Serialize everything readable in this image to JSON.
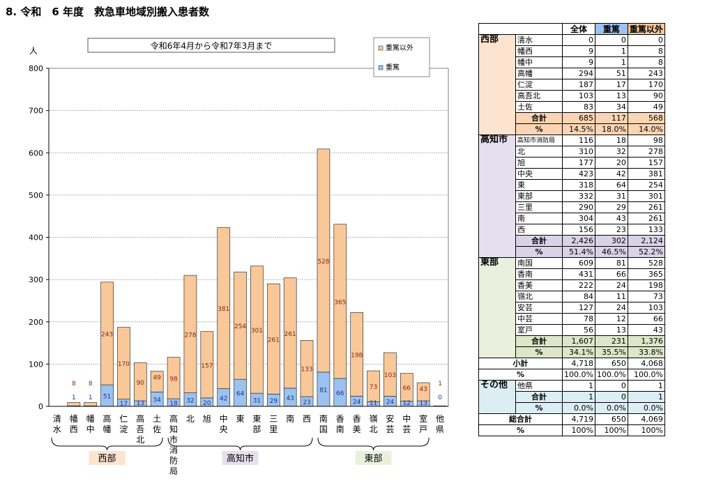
{
  "title": "8. 令和　6 年度　救急車地域別搬入患者数",
  "colors": {
    "severe": "#9bc2f0",
    "non_severe": "#f9c898",
    "severe_label": "#1f2f8f",
    "non_severe_label": "#8b1e1e"
  },
  "chart_data": {
    "type": "bar",
    "stacked": true,
    "period_label": "令和6年4月から令和7年3月まで",
    "y_unit_label": "人",
    "ylim": [
      0,
      800
    ],
    "yticks": [
      0,
      100,
      200,
      300,
      400,
      500,
      600,
      700,
      800
    ],
    "legend": [
      "重篤以外",
      "重篤"
    ],
    "categories": [
      {
        "label": "清水",
        "chars": [
          "清",
          "水"
        ]
      },
      {
        "label": "幡西",
        "chars": [
          "幡",
          "西"
        ]
      },
      {
        "label": "幡中",
        "chars": [
          "幡",
          "中"
        ]
      },
      {
        "label": "高幡",
        "chars": [
          "高",
          "幡"
        ]
      },
      {
        "label": "仁淀",
        "chars": [
          "仁",
          "淀"
        ]
      },
      {
        "label": "高吾北",
        "chars": [
          "高",
          "吾",
          "北"
        ]
      },
      {
        "label": "土佐",
        "chars": [
          "土",
          "佐"
        ]
      },
      {
        "label": "高知市消防局",
        "chars": [
          "高",
          "知",
          "市",
          "消",
          "防",
          "局"
        ]
      },
      {
        "label": "北",
        "chars": [
          "北"
        ]
      },
      {
        "label": "旭",
        "chars": [
          "旭"
        ]
      },
      {
        "label": "中央",
        "chars": [
          "中",
          "央"
        ]
      },
      {
        "label": "東",
        "chars": [
          "東"
        ]
      },
      {
        "label": "東部",
        "chars": [
          "東",
          "部"
        ]
      },
      {
        "label": "三里",
        "chars": [
          "三",
          "里"
        ]
      },
      {
        "label": "南",
        "chars": [
          "南"
        ]
      },
      {
        "label": "西",
        "chars": [
          "西"
        ]
      },
      {
        "label": "南国",
        "chars": [
          "南",
          "国"
        ]
      },
      {
        "label": "香南",
        "chars": [
          "香",
          "南"
        ]
      },
      {
        "label": "香美",
        "chars": [
          "香",
          "美"
        ]
      },
      {
        "label": "嶺北",
        "chars": [
          "嶺",
          "北"
        ]
      },
      {
        "label": "安芸",
        "chars": [
          "安",
          "芸"
        ]
      },
      {
        "label": "中芸",
        "chars": [
          "中",
          "芸"
        ]
      },
      {
        "label": "室戸",
        "chars": [
          "室",
          "戸"
        ]
      },
      {
        "label": "他県",
        "chars": [
          "他",
          "県"
        ]
      }
    ],
    "series": [
      {
        "name": "重篤",
        "values": [
          0,
          1,
          1,
          51,
          17,
          13,
          34,
          18,
          32,
          20,
          42,
          64,
          31,
          29,
          43,
          23,
          81,
          66,
          24,
          11,
          24,
          12,
          13,
          0
        ]
      },
      {
        "name": "重篤以外",
        "values": [
          0,
          8,
          8,
          243,
          170,
          90,
          49,
          98,
          278,
          157,
          381,
          254,
          301,
          261,
          261,
          133,
          528,
          365,
          198,
          73,
          103,
          66,
          43,
          1
        ]
      }
    ],
    "groups": [
      {
        "name": "西部",
        "start": 0,
        "end": 6
      },
      {
        "name": "高知市",
        "start": 7,
        "end": 15
      },
      {
        "name": "東部",
        "start": 16,
        "end": 22
      }
    ]
  },
  "table": {
    "headers": {
      "total": "全体",
      "severe": "重篤",
      "non_severe": "重篤以外"
    },
    "regions": [
      {
        "name": "西部",
        "rows": [
          [
            "清水",
            "0",
            "0",
            "0"
          ],
          [
            "幡西",
            "9",
            "1",
            "8"
          ],
          [
            "幡中",
            "9",
            "1",
            "8"
          ],
          [
            "高幡",
            "294",
            "51",
            "243"
          ],
          [
            "仁淀",
            "187",
            "17",
            "170"
          ],
          [
            "高吾北",
            "103",
            "13",
            "90"
          ],
          [
            "土佐",
            "83",
            "34",
            "49"
          ]
        ],
        "subtotal_label": "合計",
        "subtotal": [
          "685",
          "117",
          "568"
        ],
        "pct_label": "%",
        "pct": [
          "14.5%",
          "18.0%",
          "14.0%"
        ]
      },
      {
        "name": "高知市",
        "rows": [
          [
            "高知市消防局",
            "116",
            "18",
            "98"
          ],
          [
            "北",
            "310",
            "32",
            "278"
          ],
          [
            "旭",
            "177",
            "20",
            "157"
          ],
          [
            "中央",
            "423",
            "42",
            "381"
          ],
          [
            "東",
            "318",
            "64",
            "254"
          ],
          [
            "東部",
            "332",
            "31",
            "301"
          ],
          [
            "三里",
            "290",
            "29",
            "261"
          ],
          [
            "南",
            "304",
            "43",
            "261"
          ],
          [
            "西",
            "156",
            "23",
            "133"
          ]
        ],
        "subtotal_label": "合計",
        "subtotal": [
          "2,426",
          "302",
          "2,124"
        ],
        "pct_label": "%",
        "pct": [
          "51.4%",
          "46.5%",
          "52.2%"
        ]
      },
      {
        "name": "東部",
        "rows": [
          [
            "南国",
            "609",
            "81",
            "528"
          ],
          [
            "香南",
            "431",
            "66",
            "365"
          ],
          [
            "香美",
            "222",
            "24",
            "198"
          ],
          [
            "嶺北",
            "84",
            "11",
            "73"
          ],
          [
            "安芸",
            "127",
            "24",
            "103"
          ],
          [
            "中芸",
            "78",
            "12",
            "66"
          ],
          [
            "室戸",
            "56",
            "13",
            "43"
          ]
        ],
        "subtotal_label": "合計",
        "subtotal": [
          "1,607",
          "231",
          "1,376"
        ],
        "pct_label": "%",
        "pct": [
          "34.1%",
          "35.5%",
          "33.8%"
        ]
      }
    ],
    "shoukei": {
      "label": "小計",
      "values": [
        "4,718",
        "650",
        "4,068"
      ],
      "pct_label": "%",
      "pct": [
        "100.0%",
        "100.0%",
        "100.0%"
      ]
    },
    "other": {
      "name": "その他",
      "rows": [
        [
          "他県",
          "1",
          "0",
          "1"
        ]
      ],
      "subtotal_label": "合計",
      "subtotal": [
        "1",
        "0",
        "1"
      ],
      "pct_label": "%",
      "pct": [
        "0.0%",
        "0.0%",
        "0.0%"
      ]
    },
    "grand": {
      "label": "総合計",
      "values": [
        "4,719",
        "650",
        "4,069"
      ],
      "pct_label": "%",
      "pct": [
        "100%",
        "100%",
        "100%"
      ]
    }
  }
}
